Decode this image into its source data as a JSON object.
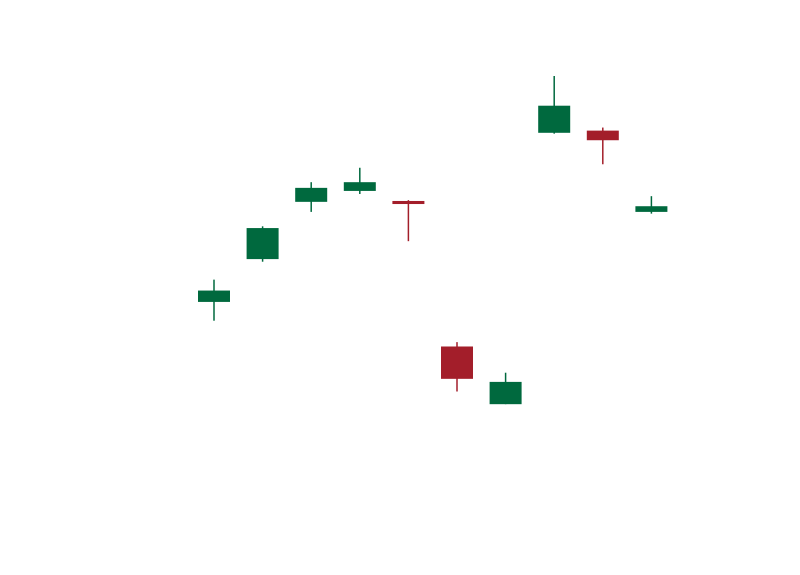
{
  "chart_data": {
    "type": "candlestick",
    "title": "",
    "xlabel": "",
    "ylabel": "",
    "axes_visible": false,
    "grid": false,
    "ylim": [
      0,
      100
    ],
    "colors": {
      "up": "#00693e",
      "down": "#a31e2a"
    },
    "candles": [
      {
        "open": 46.7,
        "close": 49.3,
        "high": 51.8,
        "low": 42.4,
        "direction": "up"
      },
      {
        "open": 56.5,
        "close": 63.6,
        "high": 64.0,
        "low": 55.9,
        "direction": "up"
      },
      {
        "open": 69.6,
        "close": 72.8,
        "high": 74.1,
        "low": 67.3,
        "direction": "up"
      },
      {
        "open": 72.1,
        "close": 74.1,
        "high": 77.4,
        "low": 71.4,
        "direction": "up"
      },
      {
        "open": 69.8,
        "close": 69.1,
        "high": 70.0,
        "low": 60.6,
        "direction": "down"
      },
      {
        "open": 36.5,
        "close": 29.1,
        "high": 37.5,
        "low": 26.2,
        "direction": "down"
      },
      {
        "open": 23.3,
        "close": 28.4,
        "high": 30.5,
        "low": 23.3,
        "direction": "up"
      },
      {
        "open": 85.4,
        "close": 91.6,
        "high": 98.4,
        "low": 85.2,
        "direction": "up"
      },
      {
        "open": 85.9,
        "close": 83.7,
        "high": 86.6,
        "low": 78.2,
        "direction": "down"
      },
      {
        "open": 67.3,
        "close": 68.6,
        "high": 70.9,
        "low": 66.9,
        "direction": "up"
      }
    ]
  }
}
